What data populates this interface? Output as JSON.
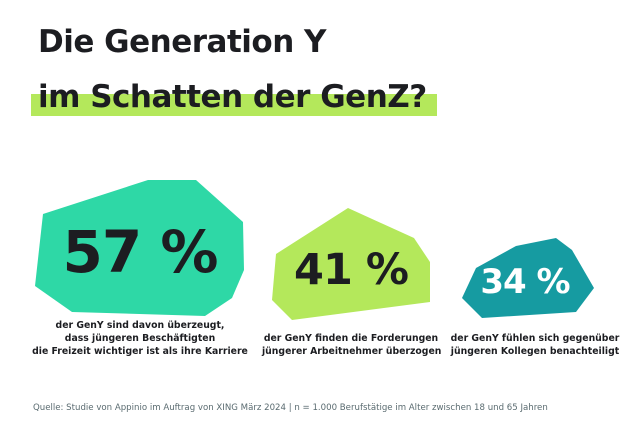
{
  "title": {
    "line1": "Die Generation Y",
    "line2": "im Schatten der GenZ?"
  },
  "colors": {
    "highlight": "#b4e85b",
    "stat1_shape": "#2ed8a6",
    "stat2_shape": "#b4e85b",
    "stat3_shape": "#169ba1",
    "text_dark": "#1c1d21",
    "text_light": "#ffffff"
  },
  "stats": [
    {
      "value": "57 %",
      "description": [
        "der GenY sind davon überzeugt,",
        "dass jüngeren Beschäftigten",
        "die Freizeit wichtiger ist als ihre Karriere"
      ]
    },
    {
      "value": "41 %",
      "description": [
        "der GenY finden die Forderungen",
        "jüngerer Arbeitnehmer überzogen"
      ]
    },
    {
      "value": "34 %",
      "description": [
        "der GenY fühlen sich gegenüber",
        "jüngeren Kollegen benachteiligt"
      ]
    }
  ],
  "source": "Quelle: Studie von Appinio im Auftrag von XING März 2024 | n = 1.000 Berufstätige im Alter zwischen 18 und 65 Jahren"
}
